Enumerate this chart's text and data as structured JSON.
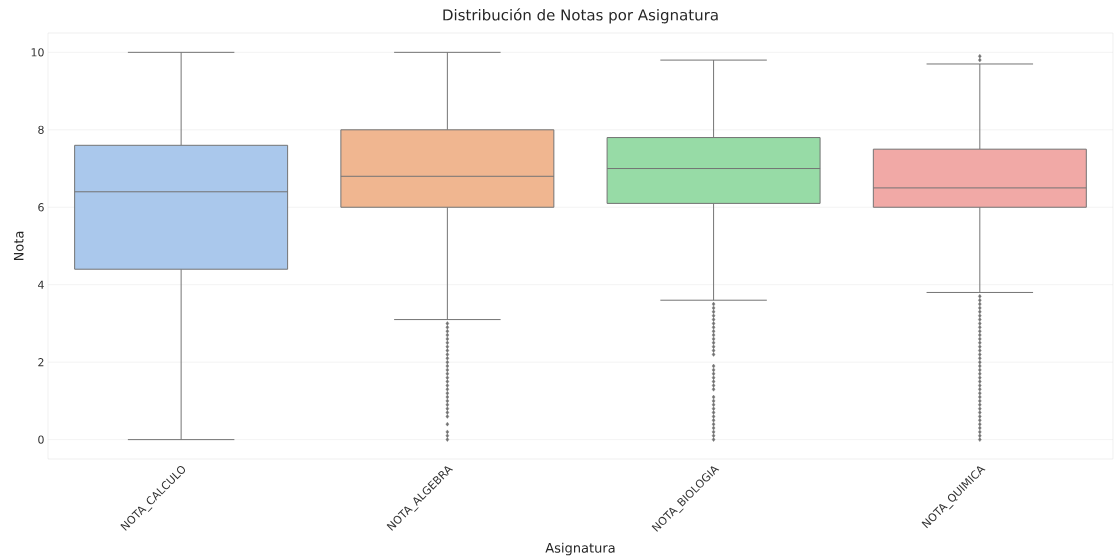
{
  "chart_data": {
    "type": "box",
    "title": "Distribución de Notas por Asignatura",
    "xlabel": "Asignatura",
    "ylabel": "Nota",
    "categories": [
      "NOTA_CALCULO",
      "NOTA_ALGEBRA",
      "NOTA_BIOLOGIA",
      "NOTA_QUIMICA"
    ],
    "colors": [
      "#aac8ec",
      "#f0b690",
      "#97dba6",
      "#f1a9a6"
    ],
    "boxes": [
      {
        "low": 0,
        "q1": 4.4,
        "median": 6.4,
        "q3": 7.6,
        "high": 10
      },
      {
        "low": 3.1,
        "q1": 6.0,
        "median": 6.8,
        "q3": 8.0,
        "high": 10,
        "outliers": [
          0,
          0.1,
          0.2,
          0.4,
          0.6,
          0.7,
          0.8,
          0.9,
          1.0,
          1.1,
          1.2,
          1.3,
          1.4,
          1.5,
          1.6,
          1.7,
          1.8,
          1.9,
          2.0,
          2.1,
          2.2,
          2.3,
          2.4,
          2.5,
          2.6,
          2.7,
          2.8,
          2.9,
          3.0
        ]
      },
      {
        "low": 3.6,
        "q1": 6.1,
        "median": 7.0,
        "q3": 7.8,
        "high": 9.8,
        "outliers": [
          0,
          0.1,
          0.2,
          0.3,
          0.4,
          0.5,
          0.6,
          0.7,
          0.8,
          0.9,
          1.0,
          1.1,
          1.3,
          1.4,
          1.5,
          1.6,
          1.7,
          1.8,
          1.9,
          2.2,
          2.3,
          2.4,
          2.5,
          2.6,
          2.7,
          2.8,
          2.9,
          3.0,
          3.1,
          3.2,
          3.3,
          3.4,
          3.5
        ]
      },
      {
        "low": 3.8,
        "q1": 6.0,
        "median": 6.5,
        "q3": 7.5,
        "high": 9.7,
        "outliers": [
          0,
          0.1,
          0.2,
          0.3,
          0.4,
          0.5,
          0.6,
          0.7,
          0.8,
          0.9,
          1.0,
          1.1,
          1.2,
          1.3,
          1.4,
          1.5,
          1.6,
          1.7,
          1.8,
          1.9,
          2.0,
          2.1,
          2.2,
          2.3,
          2.4,
          2.5,
          2.6,
          2.7,
          2.8,
          2.9,
          3.0,
          3.1,
          3.2,
          3.3,
          3.4,
          3.5,
          3.6,
          3.7,
          9.8,
          9.9
        ]
      }
    ],
    "ylim": [
      -0.5,
      10.5
    ],
    "yticks": [
      0,
      2,
      4,
      6,
      8,
      10
    ],
    "grid": "y",
    "marker": "diamond"
  }
}
